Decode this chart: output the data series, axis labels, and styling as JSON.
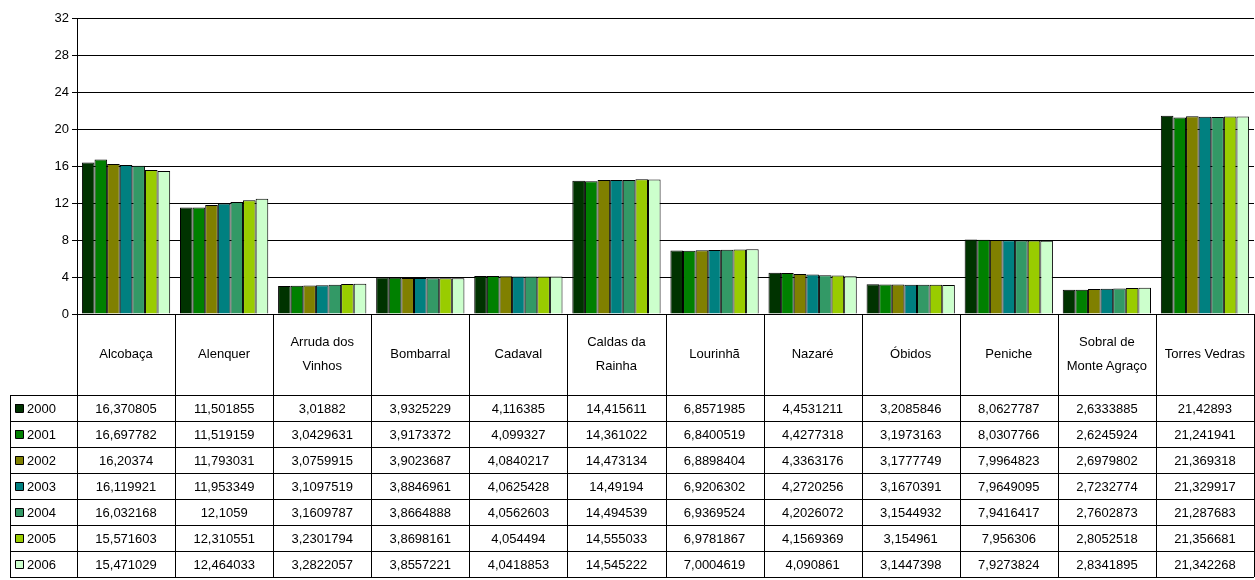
{
  "chart_data": {
    "type": "bar",
    "categories": [
      "Alcobaça",
      "Alenquer",
      "Arruda dos Vinhos",
      "Bombarral",
      "Cadaval",
      "Caldas da Rainha",
      "Lourinhã",
      "Nazaré",
      "Óbidos",
      "Peniche",
      "Sobral de Monte Agraço",
      "Torres Vedras"
    ],
    "series": [
      {
        "name": "2000",
        "color": "#003300",
        "values": [
          16.370805,
          11.501855,
          3.01882,
          3.9325229,
          4.116385,
          14.415611,
          6.8571985,
          4.4531211,
          3.2085846,
          8.0627787,
          2.6333885,
          21.42893
        ],
        "value_labels": [
          "16,370805",
          "11,501855",
          "3,01882",
          "3,9325229",
          "4,116385",
          "14,415611",
          "6,8571985",
          "4,4531211",
          "3,2085846",
          "8,0627787",
          "2,6333885",
          "21,42893"
        ]
      },
      {
        "name": "2001",
        "color": "#008000",
        "values": [
          16.697782,
          11.519159,
          3.0429631,
          3.9173372,
          4.099327,
          14.361022,
          6.8400519,
          4.4277318,
          3.1973163,
          8.0307766,
          2.6245924,
          21.241941
        ],
        "value_labels": [
          "16,697782",
          "11,519159",
          "3,0429631",
          "3,9173372",
          "4,099327",
          "14,361022",
          "6,8400519",
          "4,4277318",
          "3,1973163",
          "8,0307766",
          "2,6245924",
          "21,241941"
        ]
      },
      {
        "name": "2002",
        "color": "#808000",
        "values": [
          16.20374,
          11.793031,
          3.0759915,
          3.9023687,
          4.0840217,
          14.473134,
          6.8898404,
          4.3363176,
          3.1777749,
          7.9964823,
          2.6979802,
          21.369318
        ],
        "value_labels": [
          "16,20374",
          "11,793031",
          "3,0759915",
          "3,9023687",
          "4,0840217",
          "14,473134",
          "6,8898404",
          "4,3363176",
          "3,1777749",
          "7,9964823",
          "2,6979802",
          "21,369318"
        ]
      },
      {
        "name": "2003",
        "color": "#008080",
        "values": [
          16.119921,
          11.953349,
          3.1097519,
          3.8846961,
          4.0625428,
          14.49194,
          6.9206302,
          4.2720256,
          3.1670391,
          7.9649095,
          2.7232774,
          21.329917
        ],
        "value_labels": [
          "16,119921",
          "11,953349",
          "3,1097519",
          "3,8846961",
          "4,0625428",
          "14,49194",
          "6,9206302",
          "4,2720256",
          "3,1670391",
          "7,9649095",
          "2,7232774",
          "21,329917"
        ]
      },
      {
        "name": "2004",
        "color": "#339966",
        "values": [
          16.032168,
          12.1059,
          3.1609787,
          3.8664888,
          4.0562603,
          14.494539,
          6.9369524,
          4.2026072,
          3.1544932,
          7.9416417,
          2.7602873,
          21.287683
        ],
        "value_labels": [
          "16,032168",
          "12,1059",
          "3,1609787",
          "3,8664888",
          "4,0562603",
          "14,494539",
          "6,9369524",
          "4,2026072",
          "3,1544932",
          "7,9416417",
          "2,7602873",
          "21,287683"
        ]
      },
      {
        "name": "2005",
        "color": "#99cc00",
        "values": [
          15.571603,
          12.310551,
          3.2301794,
          3.8698161,
          4.054494,
          14.555033,
          6.9781867,
          4.1569369,
          3.154961,
          7.956306,
          2.8052518,
          21.356681
        ],
        "value_labels": [
          "15,571603",
          "12,310551",
          "3,2301794",
          "3,8698161",
          "4,054494",
          "14,555033",
          "6,9781867",
          "4,1569369",
          "3,154961",
          "7,956306",
          "2,8052518",
          "21,356681"
        ]
      },
      {
        "name": "2006",
        "color": "#ccffcc",
        "values": [
          15.471029,
          12.464033,
          3.2822057,
          3.8557221,
          4.0418853,
          14.545222,
          7.0004619,
          4.090861,
          3.1447398,
          7.9273824,
          2.8341895,
          21.342268
        ],
        "value_labels": [
          "15,471029",
          "12,464033",
          "3,2822057",
          "3,8557221",
          "4,0418853",
          "14,545222",
          "7,0004619",
          "4,090861",
          "3,1447398",
          "7,9273824",
          "2,8341895",
          "21,342268"
        ]
      }
    ],
    "ylim": [
      0,
      32
    ],
    "yticks": [
      0,
      4,
      8,
      12,
      16,
      20,
      24,
      28,
      32
    ],
    "grid": "y",
    "legend": "bottom"
  }
}
